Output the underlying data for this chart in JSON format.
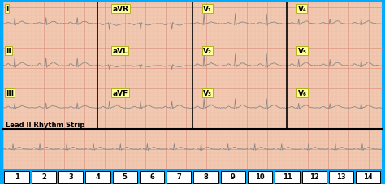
{
  "bg_color": "#f2c8b0",
  "grid_minor_color": "#e8b0a0",
  "grid_major_color": "#d89080",
  "border_color": "#00aaff",
  "label_bg": "#ffff99",
  "label_border": "#aaaa00",
  "rhythm_label": "Lead II Rhythm Strip",
  "bottom_numbers": [
    "1",
    "2",
    "3",
    "4",
    "5",
    "6",
    "7",
    "8",
    "9",
    "10",
    "11",
    "12",
    "13",
    "14"
  ],
  "ecg_color": "#808080",
  "num_bg": "#ffffff",
  "num_border": "#000000",
  "cyan_bar": "#00aaff",
  "sep_color": "#000000",
  "fig_w": 4.74,
  "fig_h": 2.28,
  "dpi": 100
}
